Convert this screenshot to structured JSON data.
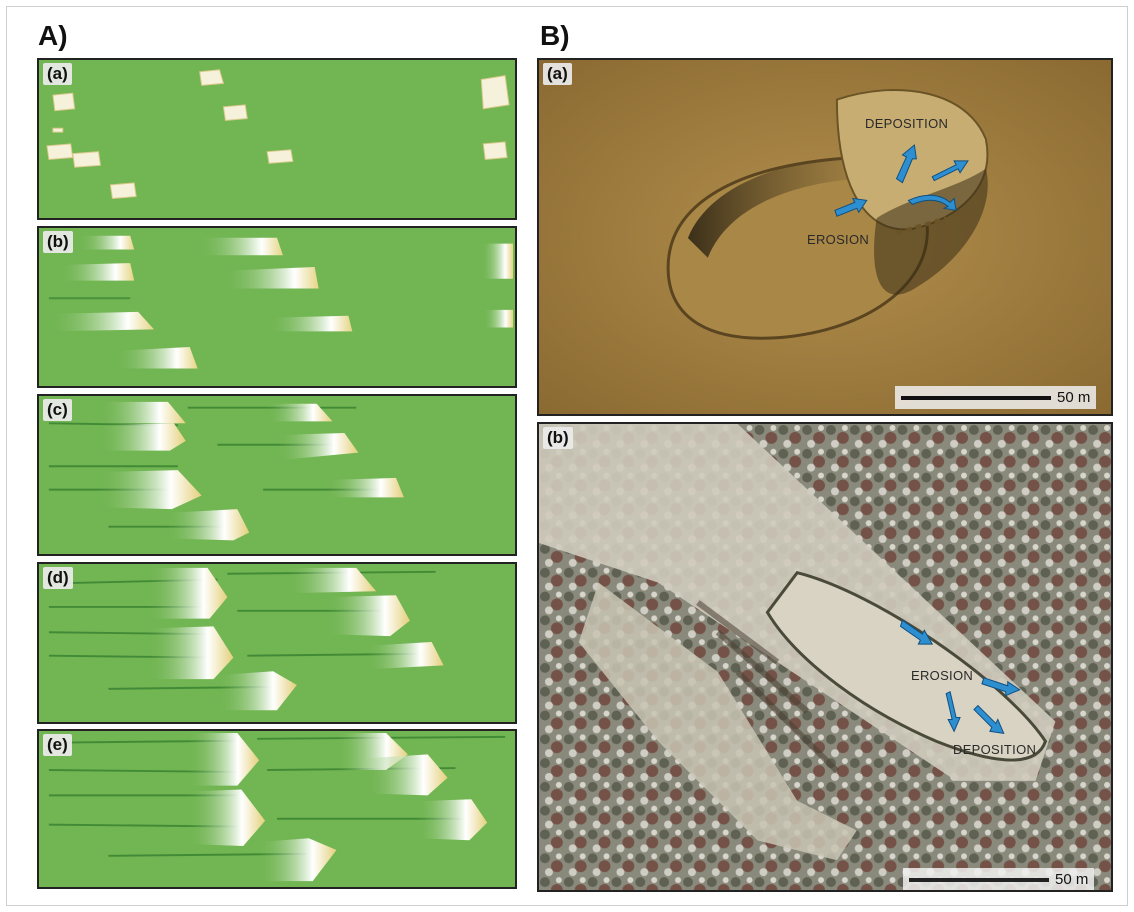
{
  "figure": {
    "section_a_label": "A)",
    "section_b_label": "B)",
    "left_panels": [
      {
        "label": "(a)"
      },
      {
        "label": "(b)"
      },
      {
        "label": "(c)"
      },
      {
        "label": "(d)"
      },
      {
        "label": "(e)"
      }
    ],
    "photo_a": {
      "label": "(a)",
      "deposition_label": "DEPOSITION",
      "erosion_label": "EROSION",
      "scale_text": "50 m"
    },
    "photo_b": {
      "label": "(b)",
      "erosion_label": "EROSION",
      "deposition_label": "DEPOSITION",
      "scale_text": "50 m"
    }
  },
  "colors": {
    "grass_green": "#6fb04f",
    "sand": "#f3edd2",
    "arrow_blue": "#2e8fd0",
    "photo_a_ground": "#a58140",
    "photo_b_ground": "#8f8a7a"
  }
}
